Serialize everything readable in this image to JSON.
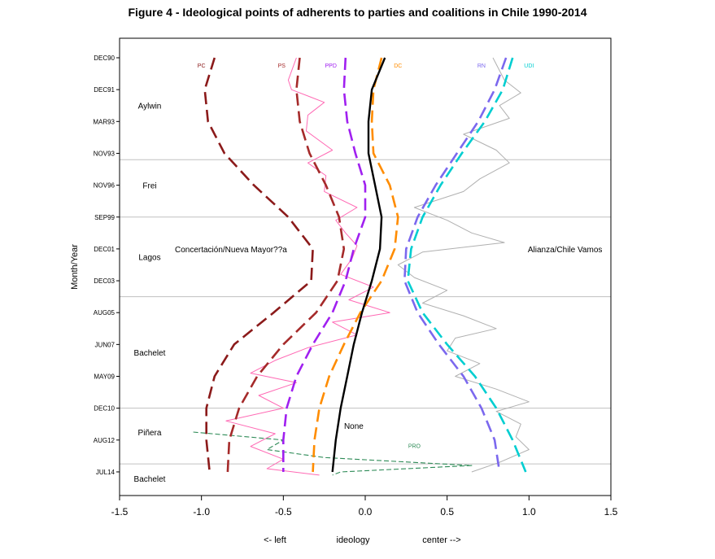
{
  "chart_data": {
    "type": "line",
    "title": "Figure 4 -  Ideological points of adherents to parties and coalitions in Chile 1990-2014",
    "ylabel": "Month/Year",
    "xlabel_parts": [
      "<- left",
      "ideology",
      "center -->"
    ],
    "xlim": [
      -1.5,
      1.5
    ],
    "x_ticks": [
      -1.5,
      -1.0,
      -0.5,
      0.0,
      0.5,
      1.0,
      1.5
    ],
    "x_tick_labels": [
      "-1.5",
      "-1.0",
      "-0.5",
      "0.0",
      "0.5",
      "1.0",
      "1.5"
    ],
    "y_categories": [
      "DEC90",
      "DEC91",
      "MAR93",
      "NOV93",
      "NOV96",
      "SEP99",
      "DEC01",
      "DEC03",
      "AUG05",
      "JUN07",
      "MAY09",
      "DEC10",
      "AUG12",
      "JUL14"
    ],
    "y_direction": "top-to-bottom",
    "period_boundaries": [
      3.2,
      5.0,
      7.5,
      11.0,
      12.75
    ],
    "periods": [
      {
        "name": "Aylwin",
        "at": 1.5
      },
      {
        "name": "Frei",
        "at": 4.0
      },
      {
        "name": "Lagos",
        "at": 6.25
      },
      {
        "name": "Bachelet",
        "at": 9.25
      },
      {
        "name": "Piñera",
        "at": 11.75
      },
      {
        "name": "Bachelet",
        "at": 13.2
      }
    ],
    "annotations": [
      {
        "text": "Concertación/Nueva Mayor??a",
        "x": -0.82,
        "at": 6.0
      },
      {
        "text": "Alianza/Chile Vamos",
        "x": 1.22,
        "at": 6.0
      },
      {
        "text": "None",
        "x": -0.07,
        "at": 11.55
      }
    ],
    "series": [
      {
        "name": "PC",
        "color": "#8b1a1a",
        "style": "dashed-thick",
        "label_x": -1.0,
        "label_at": 0.25,
        "y": [
          0,
          1,
          2,
          3,
          4,
          5,
          6,
          7,
          8,
          9,
          10,
          11,
          12,
          13
        ],
        "x": [
          -0.92,
          -0.98,
          -0.96,
          -0.86,
          -0.68,
          -0.47,
          -0.32,
          -0.33,
          -0.56,
          -0.8,
          -0.92,
          -0.97,
          -0.97,
          -0.95
        ]
      },
      {
        "name": "PS",
        "color": "#a52a2a",
        "style": "dashed-thick",
        "label_x": -0.51,
        "label_at": 0.25,
        "y": [
          0,
          1,
          2,
          3,
          4,
          5,
          6,
          7,
          8,
          9,
          10,
          11,
          12,
          13
        ],
        "x": [
          -0.4,
          -0.42,
          -0.4,
          -0.34,
          -0.24,
          -0.16,
          -0.13,
          -0.17,
          -0.3,
          -0.5,
          -0.66,
          -0.77,
          -0.83,
          -0.84
        ]
      },
      {
        "name": "PPD",
        "color": "#a020f0",
        "style": "dashed-thick",
        "label_x": -0.21,
        "label_at": 0.25,
        "y": [
          0,
          1,
          2,
          3,
          4,
          5,
          6,
          7,
          8,
          9,
          10,
          11,
          12,
          13
        ],
        "x": [
          -0.12,
          -0.13,
          -0.11,
          -0.06,
          0.0,
          0.0,
          -0.07,
          -0.12,
          -0.2,
          -0.32,
          -0.42,
          -0.48,
          -0.5,
          -0.5
        ]
      },
      {
        "name": "DC",
        "color": "#ff8c00",
        "style": "dashed-thick",
        "label_x": 0.2,
        "label_at": 0.25,
        "y": [
          0,
          1,
          2,
          3,
          4,
          5,
          6,
          7,
          8,
          9,
          10,
          11,
          12,
          13
        ],
        "x": [
          0.1,
          0.05,
          0.04,
          0.05,
          0.15,
          0.2,
          0.18,
          0.1,
          -0.03,
          -0.13,
          -0.22,
          -0.28,
          -0.31,
          -0.32
        ]
      },
      {
        "name": "RN",
        "color": "#7b68ee",
        "style": "dashed-thick",
        "label_x": 0.71,
        "label_at": 0.25,
        "y": [
          0,
          1,
          2,
          3,
          4,
          5,
          6,
          7,
          8,
          9,
          10,
          11,
          12,
          13
        ],
        "x": [
          0.86,
          0.79,
          0.69,
          0.56,
          0.43,
          0.32,
          0.25,
          0.24,
          0.32,
          0.45,
          0.6,
          0.71,
          0.79,
          0.82
        ]
      },
      {
        "name": "UDI",
        "color": "#00ced1",
        "style": "dashed-thick",
        "label_x": 1.0,
        "label_at": 0.25,
        "y": [
          0,
          1,
          2,
          3,
          4,
          5,
          6,
          7,
          8,
          9,
          10,
          11,
          12,
          13
        ],
        "x": [
          0.9,
          0.84,
          0.73,
          0.59,
          0.46,
          0.35,
          0.28,
          0.26,
          0.35,
          0.5,
          0.67,
          0.8,
          0.9,
          0.98
        ]
      },
      {
        "name": "None",
        "color": "#000000",
        "style": "solid-thick",
        "label": false,
        "y": [
          0,
          1,
          2,
          3,
          4,
          5,
          6,
          7,
          8,
          9,
          10,
          11,
          12,
          13
        ],
        "x": [
          0.12,
          0.04,
          0.02,
          0.02,
          0.06,
          0.1,
          0.09,
          0.04,
          -0.02,
          -0.07,
          -0.11,
          -0.15,
          -0.18,
          -0.2
        ]
      },
      {
        "name": "PRO",
        "color": "#2e8b57",
        "style": "dashed-thin",
        "label_x": 0.3,
        "label_at": 12.2,
        "y": [
          11.75,
          12.0,
          12.3,
          12.55,
          12.8,
          13.0,
          13.1
        ],
        "x": [
          -1.05,
          -0.5,
          -0.6,
          -0.25,
          0.65,
          -0.15,
          -0.2
        ]
      },
      {
        "name": "",
        "color": "#ff69b4",
        "style": "thin",
        "y": [
          0,
          0.7,
          1,
          1.4,
          1.8,
          2.3,
          2.9,
          3.3,
          3.7,
          4.2,
          4.7,
          5.1,
          5.5,
          5.9,
          6.3,
          6.8,
          7.2,
          7.6,
          8.0,
          8.3,
          8.7,
          9.1,
          9.5,
          9.9,
          10.2,
          10.6,
          11.0,
          11.4,
          11.8,
          12.2,
          12.6,
          12.9,
          13.1
        ],
        "x": [
          -0.42,
          -0.47,
          -0.45,
          -0.25,
          -0.35,
          -0.36,
          -0.2,
          -0.35,
          -0.24,
          -0.25,
          -0.05,
          -0.18,
          -0.12,
          -0.05,
          -0.08,
          -0.15,
          0.05,
          -0.1,
          0.15,
          -0.2,
          -0.05,
          -0.35,
          -0.55,
          -0.7,
          -0.42,
          -0.65,
          -0.5,
          -0.85,
          -0.55,
          -0.7,
          -0.5,
          -0.6,
          -0.28
        ]
      },
      {
        "name": "",
        "color": "#b0b0b0",
        "style": "thin",
        "y": [
          0,
          0.7,
          1.1,
          1.5,
          1.9,
          2.4,
          2.9,
          3.3,
          3.8,
          4.2,
          4.7,
          5.1,
          5.5,
          5.8,
          6.1,
          6.5,
          6.9,
          7.3,
          7.7,
          8.1,
          8.5,
          8.8,
          9.2,
          9.6,
          10.0,
          10.4,
          10.8,
          11.1,
          11.5,
          11.9,
          12.3,
          12.7,
          13.0
        ],
        "x": [
          0.78,
          0.85,
          0.95,
          0.82,
          0.88,
          0.6,
          0.8,
          0.88,
          0.7,
          0.6,
          0.3,
          0.5,
          0.65,
          0.85,
          0.35,
          0.2,
          0.3,
          0.5,
          0.35,
          0.6,
          0.8,
          0.55,
          0.5,
          0.7,
          0.55,
          0.8,
          1.0,
          0.8,
          0.95,
          0.92,
          1.0,
          0.82,
          0.65
        ]
      }
    ]
  }
}
